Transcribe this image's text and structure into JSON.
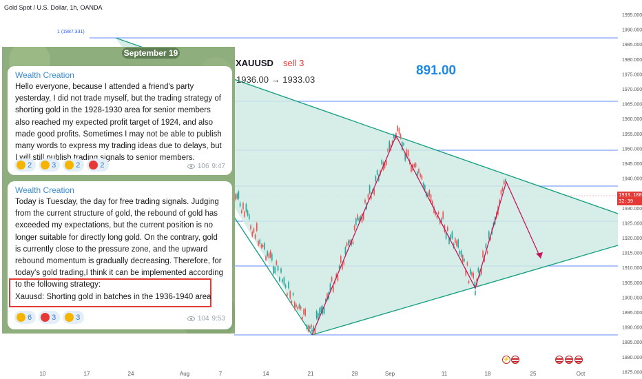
{
  "chart": {
    "title": "Gold Spot / U.S. Dollar, 1h, OANDA",
    "fib_label": "1 (1987.331)",
    "symbol": "XAUUSD",
    "action": "sell 3",
    "range": "1936.00 → 1933.03",
    "big_number": "891.00",
    "current_price": "1933.180",
    "countdown": "32:39",
    "price_axis": [
      "1995.000",
      "1990.000",
      "1985.000",
      "1980.000",
      "1975.000",
      "1970.000",
      "1965.000",
      "1960.000",
      "1955.000",
      "1950.000",
      "1945.000",
      "1940.000",
      "1935.000",
      "1930.000",
      "1925.000",
      "1920.000",
      "1915.000",
      "1910.000",
      "1905.000",
      "1900.000",
      "1895.000",
      "1890.000",
      "1885.000",
      "1880.000",
      "1875.000"
    ],
    "time_axis": [
      "10",
      "17",
      "24",
      "Aug",
      "7",
      "14",
      "21",
      "28",
      "Sep",
      "11",
      "18",
      "25",
      "Oct"
    ],
    "colors": {
      "triangle_fill": "#cfeae4",
      "triangle_line": "#1aa284",
      "path_line": "#c2185b",
      "level_line": "#2962ff",
      "up": "#26a69a",
      "down": "#ef5350"
    }
  },
  "telegram": {
    "date": "September 19",
    "messages": [
      {
        "sender": "Wealth Creation",
        "text": "Hello everyone, because I attended a friend's party yesterday, I did not trade myself, but the trading strategy of shorting gold in the 1928-1930 area for senior members also reached my expected profit target of 1924, and also made good profits. Sometimes I may not be able to publish many words to express my trading ideas due to delays, but I will still publish trading signals to senior members.",
        "reactions": [
          {
            "icon": "thumbs-down-icon",
            "color": "#f5b400",
            "count": "2"
          },
          {
            "icon": "clap-icon",
            "color": "#f5b400",
            "count": "3"
          },
          {
            "icon": "thumbs-up-icon",
            "color": "#f5b400",
            "count": "2"
          },
          {
            "icon": "heart-icon",
            "color": "#e53935",
            "count": "2"
          }
        ],
        "views": "106",
        "time": "9:47"
      },
      {
        "sender": "Wealth Creation",
        "text": "Today is Tuesday, the day for free trading signals. Judging from the current structure of gold, the rebound of gold has exceeded my expectations, but the current position is no longer suitable for directly long gold. On the contrary, gold is currently close to the pressure zone, and the upward rebound momentum is gradually decreasing. Therefore, for today's gold trading,I think it can be implemented according to the following strategy:",
        "strategy": "Xauusd: Shorting gold in batches in the 1936-1940 area",
        "reactions": [
          {
            "icon": "thumbs-up-icon",
            "color": "#f5b400",
            "count": "6"
          },
          {
            "icon": "heart-icon",
            "color": "#e53935",
            "count": "3"
          },
          {
            "icon": "party-icon",
            "color": "#f5b400",
            "count": "3"
          }
        ],
        "views": "104",
        "time": "9:53"
      }
    ]
  }
}
